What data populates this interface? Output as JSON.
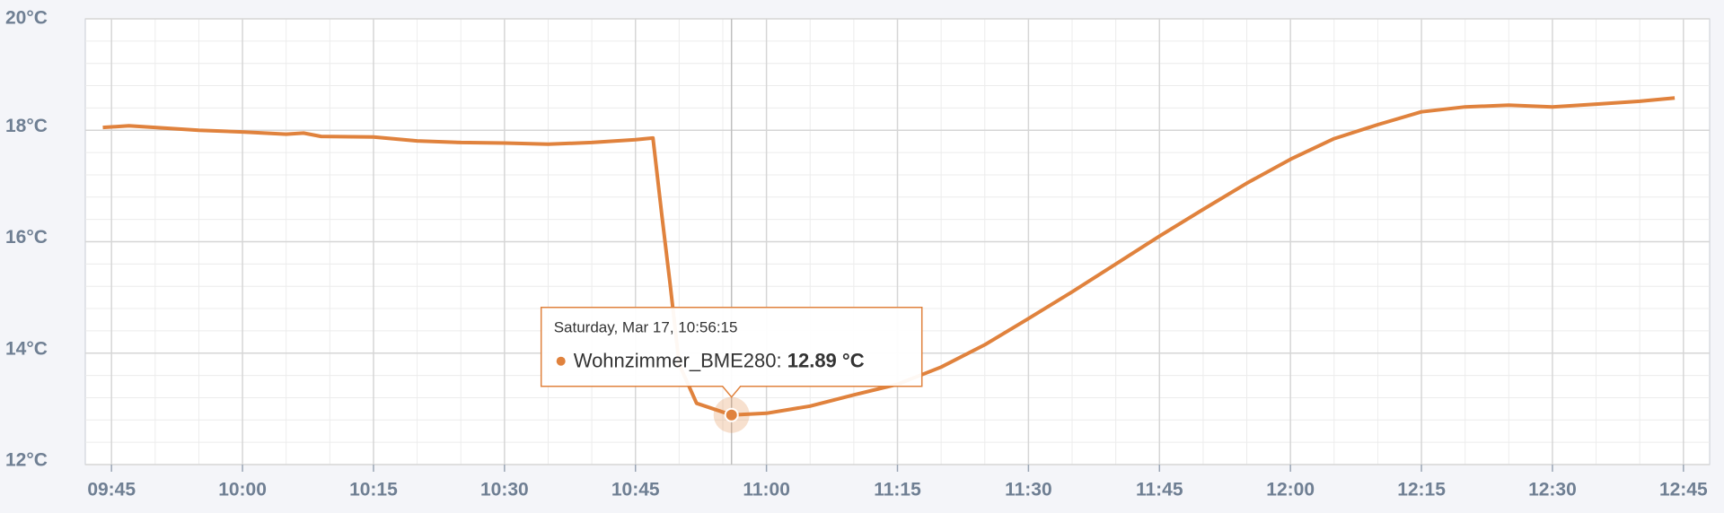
{
  "chart_data": {
    "type": "line",
    "x": [
      "09:44",
      "09:47",
      "09:50",
      "09:55",
      "10:00",
      "10:05",
      "10:07",
      "10:09",
      "10:15",
      "10:20",
      "10:25",
      "10:30",
      "10:35",
      "10:40",
      "10:45",
      "10:47",
      "10:48",
      "10:49",
      "10:50",
      "10:52",
      "10:56",
      "11:00",
      "11:05",
      "11:10",
      "11:15",
      "11:20",
      "11:25",
      "11:30",
      "11:35",
      "11:40",
      "11:45",
      "11:50",
      "11:55",
      "12:00",
      "12:05",
      "12:10",
      "12:15",
      "12:20",
      "12:25",
      "12:30",
      "12:35",
      "12:40",
      "12:44"
    ],
    "series": [
      {
        "name": "Wohnzimmer_BME280",
        "color": "#e0823d",
        "values": [
          18.05,
          18.08,
          18.05,
          18.0,
          17.97,
          17.93,
          17.95,
          17.89,
          17.88,
          17.81,
          17.78,
          17.77,
          17.75,
          17.78,
          17.83,
          17.86,
          16.5,
          15.2,
          13.8,
          13.1,
          12.89,
          12.92,
          13.05,
          13.25,
          13.44,
          13.75,
          14.15,
          14.62,
          15.1,
          15.6,
          16.1,
          16.58,
          17.05,
          17.48,
          17.85,
          18.1,
          18.33,
          18.42,
          18.45,
          18.42,
          18.47,
          18.52,
          18.58
        ]
      }
    ],
    "xlim": [
      "09:42",
      "12:48"
    ],
    "xticks": [
      "09:45",
      "10:00",
      "10:15",
      "10:30",
      "10:45",
      "11:00",
      "11:15",
      "11:30",
      "11:45",
      "12:00",
      "12:15",
      "12:30",
      "12:45"
    ],
    "ylim": [
      12,
      20
    ],
    "yticks": [
      {
        "value": 12,
        "label": "12°C"
      },
      {
        "value": 14,
        "label": "14°C"
      },
      {
        "value": 16,
        "label": "16°C"
      },
      {
        "value": 18,
        "label": "18°C"
      },
      {
        "value": 20,
        "label": "20°C"
      }
    ],
    "grid": true,
    "tooltip": {
      "date_label": "Saturday, Mar 17, 10:56:15",
      "series_label": "Wohnzimmer_BME280:",
      "value": 12.89,
      "value_label": "12.89 °C"
    }
  }
}
